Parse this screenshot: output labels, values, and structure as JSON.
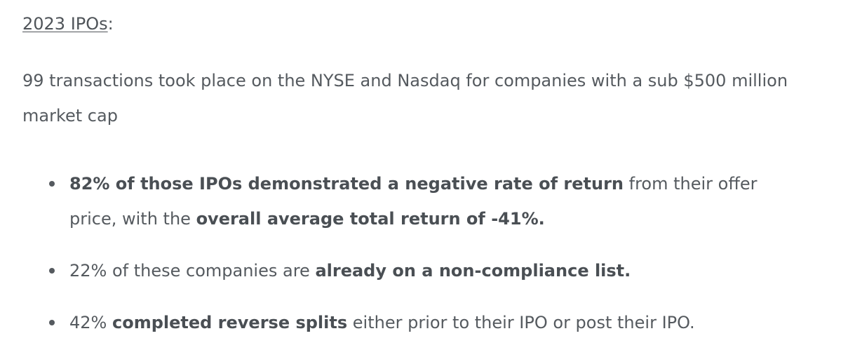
{
  "heading": {
    "title": "2023 IPOs",
    "suffix": ":"
  },
  "intro": {
    "text": "99 transactions took place on the NYSE and Nasdaq for companies with a sub $500 million market cap"
  },
  "bullets": [
    {
      "bold1": "82% of those IPOs demonstrated a negative rate of return",
      "text1": " from their offer price, with the ",
      "bold2": "overall average total return of -41%."
    },
    {
      "text1": "22% of these companies are ",
      "bold1": "already on a non-compliance list."
    },
    {
      "text1": "42% ",
      "bold1": "completed reverse splits",
      "text2": " either prior to their IPO or post their IPO."
    }
  ]
}
